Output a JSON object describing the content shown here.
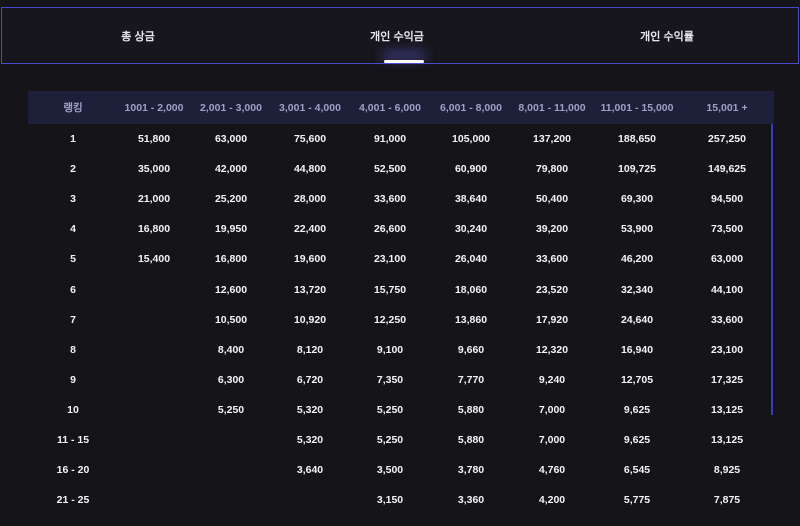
{
  "tabs": [
    {
      "label": "총 상금"
    },
    {
      "label": "개인 수익금"
    },
    {
      "label": "개인 수익률"
    }
  ],
  "table": {
    "headers": [
      "랭킹",
      "1001 - 2,000",
      "2,001 - 3,000",
      "3,001 - 4,000",
      "4,001 - 6,000",
      "6,001 - 8,000",
      "8,001 - 11,000",
      "11,001 - 15,000",
      "15,001 +"
    ],
    "rows": [
      [
        "1",
        "51,800",
        "63,000",
        "75,600",
        "91,000",
        "105,000",
        "137,200",
        "188,650",
        "257,250"
      ],
      [
        "2",
        "35,000",
        "42,000",
        "44,800",
        "52,500",
        "60,900",
        "79,800",
        "109,725",
        "149,625"
      ],
      [
        "3",
        "21,000",
        "25,200",
        "28,000",
        "33,600",
        "38,640",
        "50,400",
        "69,300",
        "94,500"
      ],
      [
        "4",
        "16,800",
        "19,950",
        "22,400",
        "26,600",
        "30,240",
        "39,200",
        "53,900",
        "73,500"
      ],
      [
        "5",
        "15,400",
        "16,800",
        "19,600",
        "23,100",
        "26,040",
        "33,600",
        "46,200",
        "63,000"
      ],
      [
        "6",
        "",
        "12,600",
        "13,720",
        "15,750",
        "18,060",
        "23,520",
        "32,340",
        "44,100"
      ],
      [
        "7",
        "",
        "10,500",
        "10,920",
        "12,250",
        "13,860",
        "17,920",
        "24,640",
        "33,600"
      ],
      [
        "8",
        "",
        "8,400",
        "8,120",
        "9,100",
        "9,660",
        "12,320",
        "16,940",
        "23,100"
      ],
      [
        "9",
        "",
        "6,300",
        "6,720",
        "7,350",
        "7,770",
        "9,240",
        "12,705",
        "17,325"
      ],
      [
        "10",
        "",
        "5,250",
        "5,320",
        "5,250",
        "5,880",
        "7,000",
        "9,625",
        "13,125"
      ],
      [
        "11 - 15",
        "",
        "",
        "5,320",
        "5,250",
        "5,880",
        "7,000",
        "9,625",
        "13,125"
      ],
      [
        "16 - 20",
        "",
        "",
        "3,640",
        "3,500",
        "3,780",
        "4,760",
        "6,545",
        "8,925"
      ],
      [
        "21 - 25",
        "",
        "",
        "",
        "3,150",
        "3,360",
        "4,200",
        "5,775",
        "7,875"
      ]
    ]
  },
  "colors": {
    "background": "#141419",
    "accent": "#4a4acf",
    "header_bg": "#1e1f38",
    "header_text": "#9fa0c6"
  }
}
